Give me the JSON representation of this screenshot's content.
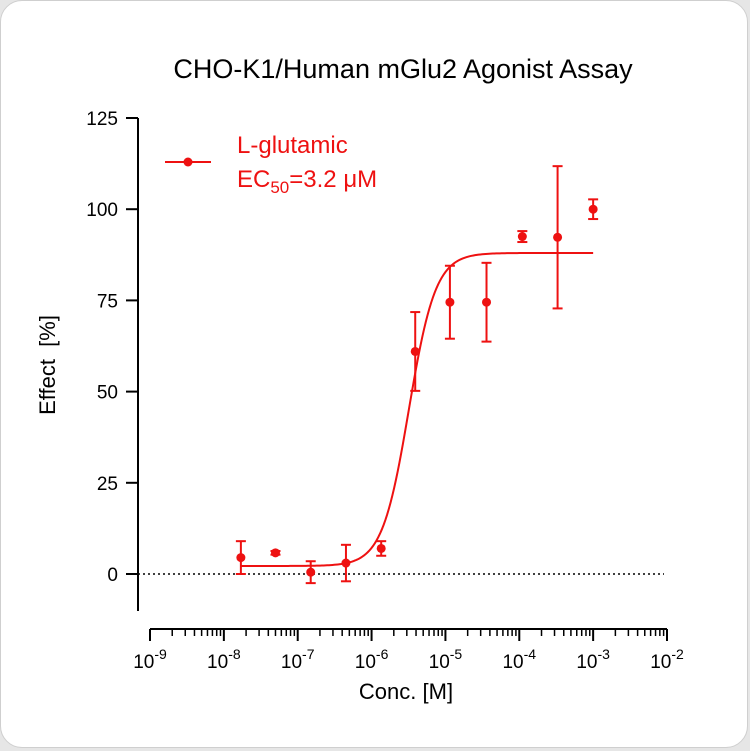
{
  "chart_data": {
    "type": "scatter",
    "title": "CHO-K1/Human mGlu2 Agonist Assay",
    "xlabel": "Conc. [M]",
    "ylabel": "Effect  [%]",
    "xscale": "log",
    "xlim": [
      1e-09,
      0.01
    ],
    "ylim": [
      -10,
      125
    ],
    "x_ticks": [
      {
        "base": "10",
        "exp": "-9",
        "value": 1e-09
      },
      {
        "base": "10",
        "exp": "-8",
        "value": 1e-08
      },
      {
        "base": "10",
        "exp": "-7",
        "value": 1e-07
      },
      {
        "base": "10",
        "exp": "-6",
        "value": 1e-06
      },
      {
        "base": "10",
        "exp": "-5",
        "value": 1e-05
      },
      {
        "base": "10",
        "exp": "-4",
        "value": 0.0001
      },
      {
        "base": "10",
        "exp": "-3",
        "value": 0.001
      },
      {
        "base": "10",
        "exp": "-2",
        "value": 0.01
      }
    ],
    "y_ticks": [
      0,
      25,
      50,
      75,
      100,
      125
    ],
    "zero_line": "dotted",
    "grid": false,
    "legend_position": "top-left",
    "series": [
      {
        "name": "L-glutamic",
        "legend_line2_prefix": "EC",
        "legend_line2_sub": "50",
        "legend_line2_suffix": "=3.2 μM",
        "color": "#ee1111",
        "points": [
          {
            "x": 1.7e-08,
            "y": 4.5,
            "err": 4.5
          },
          {
            "x": 5e-08,
            "y": 5.8,
            "err": 0.5
          },
          {
            "x": 1.5e-07,
            "y": 0.5,
            "err": 3.0
          },
          {
            "x": 4.5e-07,
            "y": 3.0,
            "err": 5.0
          },
          {
            "x": 1.35e-06,
            "y": 7.0,
            "err": 2.0
          },
          {
            "x": 3.9e-06,
            "y": 61.0,
            "err": 10.8
          },
          {
            "x": 1.15e-05,
            "y": 74.5,
            "err": 10.0
          },
          {
            "x": 3.6e-05,
            "y": 74.5,
            "err": 10.8
          },
          {
            "x": 0.00011,
            "y": 92.5,
            "err": 1.5
          },
          {
            "x": 0.00033,
            "y": 92.3,
            "err": 19.5
          },
          {
            "x": 0.001,
            "y": 100.0,
            "err": 2.7
          }
        ],
        "fit": {
          "bottom": 2.2,
          "top": 88.0,
          "ec50": 3.2e-06,
          "hill": 2.4,
          "x_range": [
            1.7e-08,
            0.001
          ]
        }
      }
    ]
  }
}
